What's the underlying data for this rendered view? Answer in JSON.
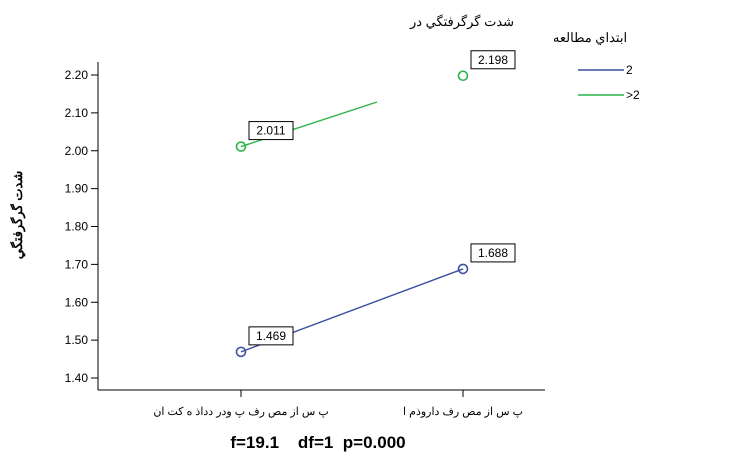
{
  "chart_data": {
    "type": "line",
    "title": "",
    "xlabel": "",
    "ylabel": "شدت گرگرفتگي",
    "categories": [
      "پ س از مص رف پ ودر دداذ ه كت ان",
      "پ س از مص رف داروذم ا"
    ],
    "ylim": [
      1.4,
      2.2
    ],
    "yticks": [
      "1.40",
      "1.50",
      "1.60",
      "1.70",
      "1.80",
      "1.90",
      "2.00",
      "2.10",
      "2.20"
    ],
    "legend": {
      "title_line1": "شدت گرگرفتگي در",
      "title_line2": "ابتداي مطالعه",
      "position": "top-right"
    },
    "series": [
      {
        "name": "2",
        "color": "#3c4fa0",
        "values": [
          1.469,
          1.688
        ],
        "labels": [
          "1.469",
          "1.688"
        ]
      },
      {
        "name": ">2",
        "color": "#2cb34a",
        "values": [
          2.011,
          2.198
        ],
        "labels": [
          "2.011",
          "2.198"
        ]
      }
    ],
    "annotation": "f=19.1    df=1  p=0.000"
  }
}
